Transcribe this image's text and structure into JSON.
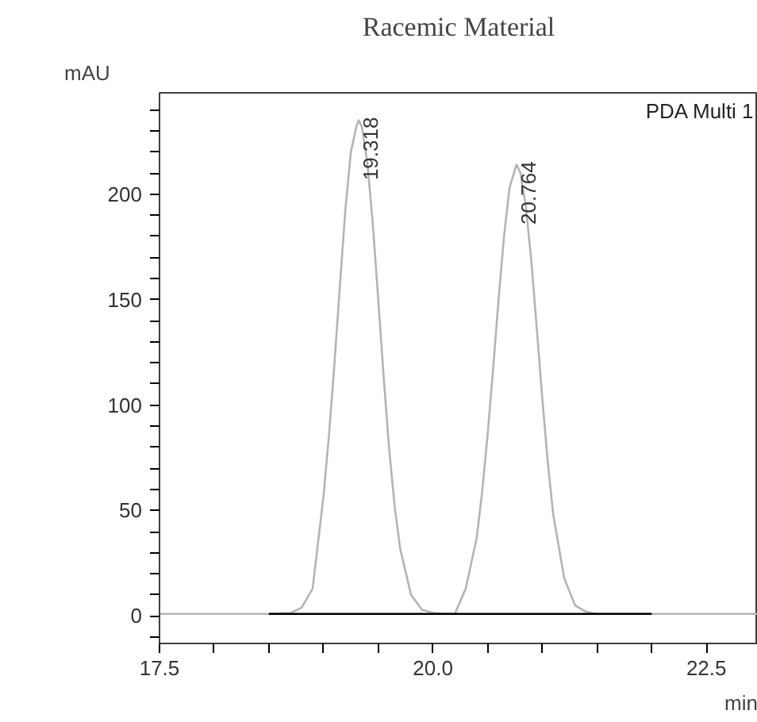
{
  "chart_data": {
    "type": "line",
    "title": "Racemic Material",
    "xlabel": "min",
    "ylabel": "mAU",
    "series": [
      {
        "color": "#b4b4b4",
        "x": [
          17.5,
          18.0,
          18.5,
          18.7,
          18.8,
          18.9,
          19.0,
          19.05,
          19.1,
          19.15,
          19.2,
          19.25,
          19.3,
          19.32,
          19.35,
          19.4,
          19.45,
          19.5,
          19.55,
          19.6,
          19.65,
          19.7,
          19.8,
          19.9,
          20.0,
          20.1,
          20.2,
          20.3,
          20.4,
          20.45,
          20.5,
          20.55,
          20.6,
          20.65,
          20.7,
          20.764,
          20.8,
          20.85,
          20.9,
          20.95,
          21.0,
          21.05,
          21.1,
          21.2,
          21.3,
          21.4,
          21.5,
          22.0,
          22.97
        ],
        "values": [
          1,
          1,
          1,
          1.5,
          4,
          13,
          57,
          86,
          120,
          157,
          193,
          220,
          232,
          235,
          232,
          215,
          186,
          150,
          113,
          79,
          52,
          32,
          10,
          3,
          1.5,
          1,
          1,
          13,
          37,
          59,
          86,
          117,
          150,
          180,
          203,
          214,
          210,
          194,
          168,
          136,
          103,
          73,
          48,
          18,
          5,
          2,
          1,
          1,
          1
        ]
      },
      {
        "color": "#000000",
        "x": [
          18.5,
          20.13,
          22.0
        ],
        "values": [
          1,
          1,
          1
        ]
      }
    ],
    "annotations": [
      {
        "text": "19.318",
        "x": 19.318,
        "y": 235
      },
      {
        "text": "20.764",
        "x": 20.764,
        "y": 214
      },
      "PDA Multi 1"
    ],
    "xlim": [
      17.5,
      22.97
    ],
    "ylim": [
      -13,
      248
    ],
    "xticks": [
      {
        "value": 17.5,
        "label": "17.5"
      },
      {
        "value": 18.0,
        "label": null
      },
      {
        "value": 18.5,
        "label": null
      },
      {
        "value": 19.0,
        "label": null
      },
      {
        "value": 19.5,
        "label": null
      },
      {
        "value": 20.0,
        "label": "20.0"
      },
      {
        "value": 20.5,
        "label": null
      },
      {
        "value": 21.0,
        "label": null
      },
      {
        "value": 21.5,
        "label": null
      },
      {
        "value": 22.0,
        "label": null
      },
      {
        "value": 22.5,
        "label": "22.5"
      }
    ],
    "yticks": [
      {
        "value": -10,
        "label": null
      },
      0,
      {
        "value": 10,
        "label": null
      },
      {
        "value": 20,
        "label": null
      },
      {
        "value": 30,
        "label": null
      },
      {
        "value": 40,
        "label": null
      },
      50,
      {
        "value": 60,
        "label": null
      },
      {
        "value": 70,
        "label": null
      },
      {
        "value": 80,
        "label": null
      },
      {
        "value": 90,
        "label": null
      },
      100,
      {
        "value": 110,
        "label": null
      },
      {
        "value": 120,
        "label": null
      },
      {
        "value": 130,
        "label": null
      },
      {
        "value": 140,
        "label": null
      },
      150,
      {
        "value": 160,
        "label": null
      },
      {
        "value": 170,
        "label": null
      },
      {
        "value": 180,
        "label": null
      },
      {
        "value": 190,
        "label": null
      },
      200,
      {
        "value": 210,
        "label": null
      },
      {
        "value": 220,
        "label": null
      },
      {
        "value": 230,
        "label": null
      },
      {
        "value": 240,
        "label": null
      }
    ],
    "grid": false,
    "marker": "none",
    "line_style": "solid"
  }
}
